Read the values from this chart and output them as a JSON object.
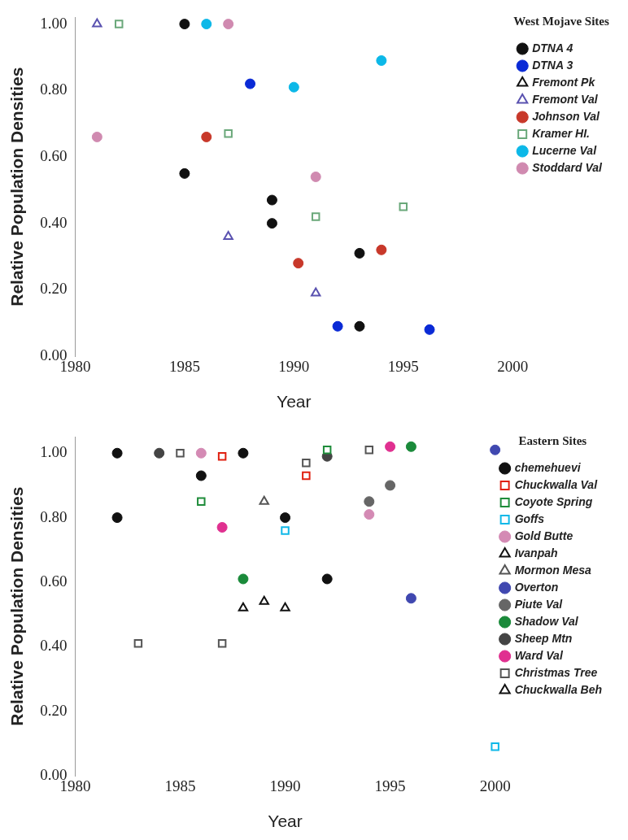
{
  "chart_data": [
    {
      "type": "scatter",
      "legend_title": "West Mojave Sites",
      "xlabel": "Year",
      "ylabel": "Relative Population Densities",
      "xlim": [
        1980,
        2000
      ],
      "xticks": [
        1980,
        1985,
        1990,
        1995,
        2000
      ],
      "ylim": [
        0,
        1.02
      ],
      "yticks": [
        {
          "value": 0,
          "label": "0.00"
        },
        {
          "value": 0.2,
          "label": "0.20"
        },
        {
          "value": 0.4,
          "label": "0.40"
        },
        {
          "value": 0.6,
          "label": "0.60"
        },
        {
          "value": 0.8,
          "label": "0.80"
        },
        {
          "value": 1,
          "label": "1.00"
        }
      ],
      "grid": false,
      "legend": "right",
      "series": [
        {
          "name": "DTNA 4",
          "color": "#111111",
          "marker": "circle",
          "x": [
            1985,
            1985,
            1989,
            1989,
            1993,
            1993
          ],
          "values": [
            1.0,
            0.55,
            0.47,
            0.4,
            0.31,
            0.09
          ]
        },
        {
          "name": "DTNA 3",
          "color": "#0a2ad6",
          "marker": "circle",
          "x": [
            1988,
            1992,
            1996.2
          ],
          "values": [
            0.82,
            0.09,
            0.08
          ]
        },
        {
          "name": "Fremont Pk",
          "color": "#111111",
          "marker": "triangle"
        },
        {
          "name": "Fremont Val",
          "color": "#5a52b0",
          "marker": "triangle",
          "x": [
            1981,
            1987,
            1991
          ],
          "values": [
            1.0,
            0.36,
            0.19
          ]
        },
        {
          "name": "Johnson Val",
          "color": "#c8382a",
          "marker": "circle",
          "x": [
            1986,
            1990.2,
            1994
          ],
          "values": [
            0.66,
            0.28,
            0.32
          ]
        },
        {
          "name": "Kramer HI.",
          "color": "#6aa87a",
          "marker": "square",
          "x": [
            1982,
            1987,
            1991,
            1995
          ],
          "values": [
            1.0,
            0.67,
            0.42,
            0.45
          ]
        },
        {
          "name": "Lucerne Val",
          "color": "#0cb8e8",
          "marker": "circle",
          "x": [
            1986,
            1990,
            1994
          ],
          "values": [
            1.0,
            0.81,
            0.89
          ]
        },
        {
          "name": "Stoddard Val",
          "color": "#d08ab0",
          "marker": "circle",
          "x": [
            1981,
            1987,
            1991
          ],
          "values": [
            0.66,
            1.0,
            0.54
          ]
        }
      ]
    },
    {
      "type": "scatter",
      "legend_title": "Eastern Sites",
      "xlabel": "Year",
      "ylabel": "Relative Population Densities",
      "xlim": [
        1980,
        2000
      ],
      "xticks": [
        1980,
        1985,
        1990,
        1995,
        2000
      ],
      "ylim": [
        0,
        1.05
      ],
      "yticks": [
        {
          "value": 0,
          "label": "0.00"
        },
        {
          "value": 0.2,
          "label": "0.20"
        },
        {
          "value": 0.4,
          "label": "0.40"
        },
        {
          "value": 0.6,
          "label": "0.60"
        },
        {
          "value": 0.8,
          "label": "0.80"
        },
        {
          "value": 1,
          "label": "1.00"
        }
      ],
      "grid": false,
      "legend": "right",
      "series": [
        {
          "name": "chemehuevi",
          "color": "#111111",
          "marker": "circle",
          "x": [
            1982,
            1988,
            1986,
            1982,
            1990,
            1992
          ],
          "values": [
            1.0,
            1.0,
            0.93,
            0.8,
            0.8,
            0.61
          ]
        },
        {
          "name": "Chuckwalla Val",
          "color": "#e02010",
          "marker": "square",
          "x": [
            1987,
            1991
          ],
          "values": [
            0.99,
            0.93
          ]
        },
        {
          "name": "Coyote Spring",
          "color": "#1e8c3a",
          "marker": "square",
          "x": [
            1992,
            1986
          ],
          "values": [
            1.01,
            0.85
          ]
        },
        {
          "name": "Goffs",
          "color": "#10b8e8",
          "marker": "square",
          "x": [
            1990,
            2000
          ],
          "values": [
            0.76,
            0.09
          ]
        },
        {
          "name": "Gold Butte",
          "color": "#d48ab4",
          "marker": "circle",
          "x": [
            1986,
            1994
          ],
          "values": [
            1.0,
            0.81
          ]
        },
        {
          "name": "Ivanpah",
          "color": "#111111",
          "marker": "triangle",
          "x": [
            1989
          ],
          "values": [
            0.54
          ]
        },
        {
          "name": "Mormon Mesa",
          "color": "#555555",
          "marker": "triangle",
          "x": [
            1989
          ],
          "values": [
            0.85
          ]
        },
        {
          "name": "Overton",
          "color": "#4048b0",
          "marker": "circle",
          "x": [
            2000,
            1996
          ],
          "values": [
            1.01,
            0.55
          ]
        },
        {
          "name": "Piute Val",
          "color": "#666666",
          "marker": "circle",
          "x": [
            1994,
            1995
          ],
          "values": [
            0.85,
            0.9
          ]
        },
        {
          "name": "Shadow Val",
          "color": "#1a8a3a",
          "marker": "circle",
          "x": [
            1996,
            1988
          ],
          "values": [
            1.02,
            0.61
          ]
        },
        {
          "name": "Sheep Mtn",
          "color": "#444444",
          "marker": "circle",
          "x": [
            1984,
            1992
          ],
          "values": [
            1.0,
            0.99
          ]
        },
        {
          "name": "Ward Val",
          "color": "#e03090",
          "marker": "circle",
          "x": [
            1995,
            1987
          ],
          "values": [
            1.02,
            0.77
          ]
        },
        {
          "name": "Christmas Tree",
          "color": "#555555",
          "marker": "square",
          "x": [
            1985,
            1991,
            1994,
            1983,
            1987
          ],
          "values": [
            1.0,
            0.97,
            1.01,
            0.41,
            0.41
          ]
        },
        {
          "name": "Chuckwalla Beh",
          "color": "#111111",
          "marker": "triangle",
          "x": [
            1988,
            1990
          ],
          "values": [
            0.52,
            0.52
          ]
        }
      ]
    }
  ]
}
